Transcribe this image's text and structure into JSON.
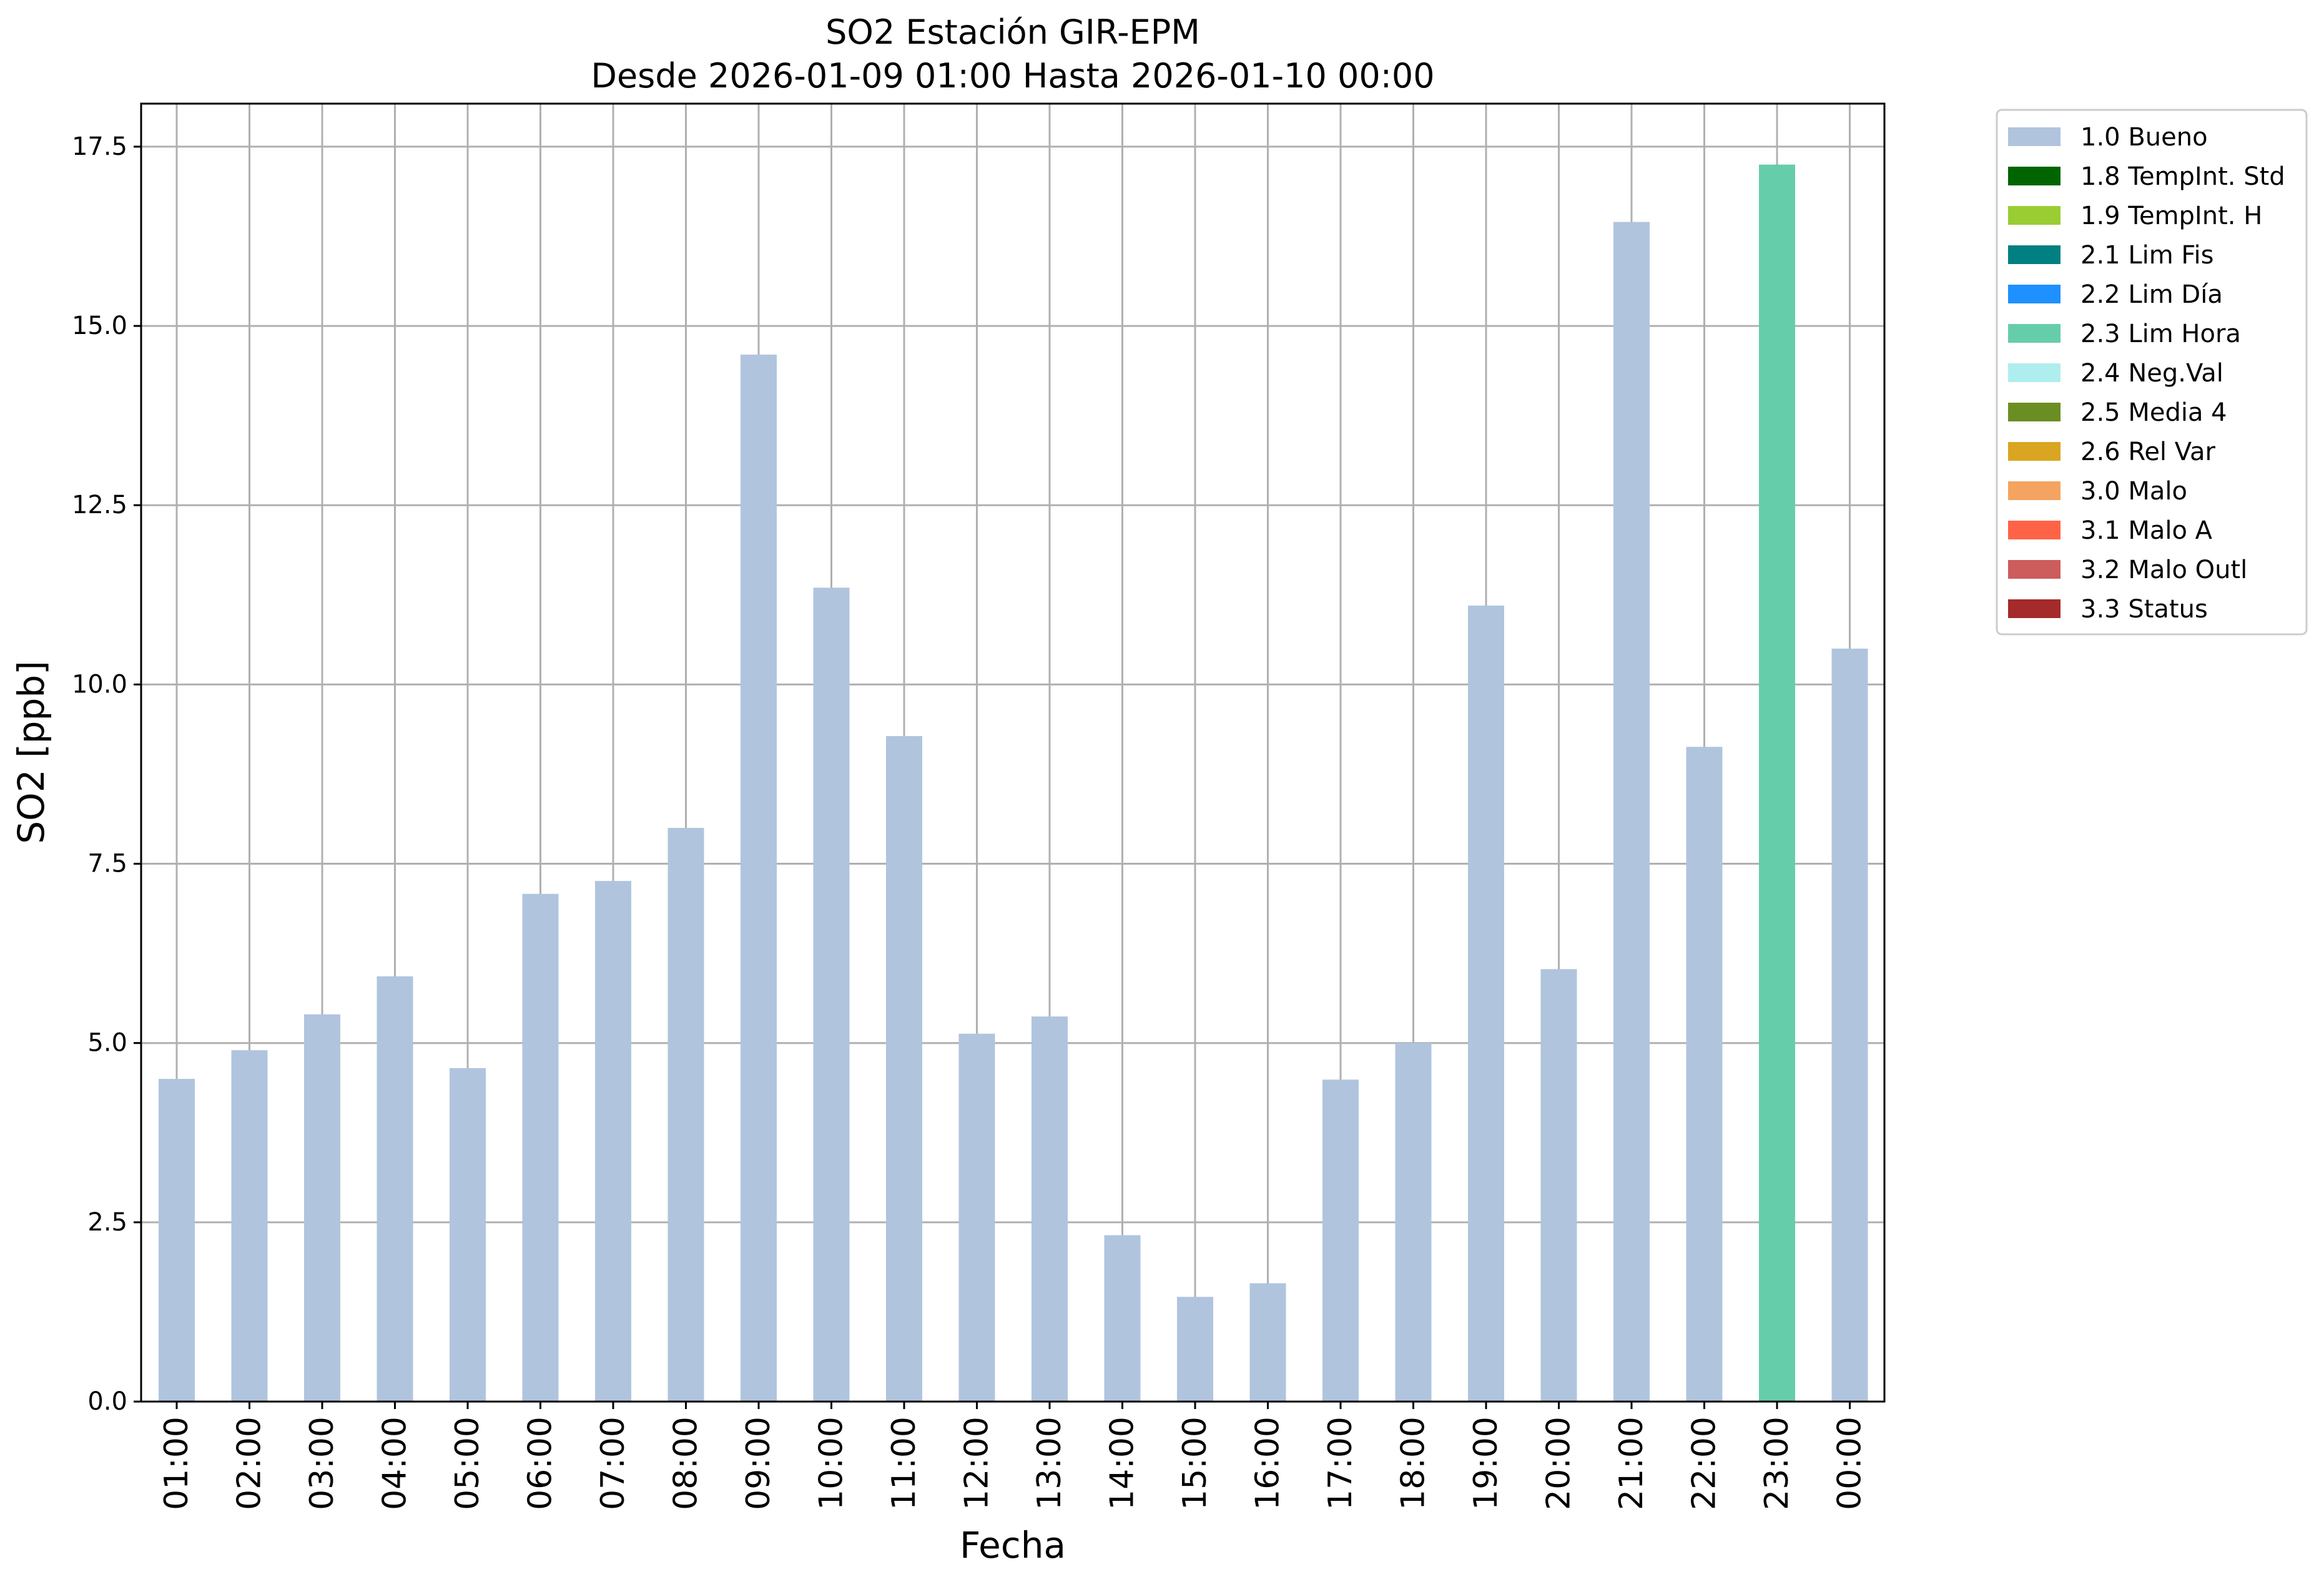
{
  "chart_data": {
    "type": "bar",
    "title": "SO2 Estación GIR-EPM",
    "subtitle": "Desde 2026-01-09 01:00 Hasta 2026-01-10 00:00",
    "xlabel": "Fecha",
    "ylabel": "SO2 [ppb]",
    "ylim": [
      0,
      18.1
    ],
    "yticks": [
      "0.0",
      "2.5",
      "5.0",
      "7.5",
      "10.0",
      "12.5",
      "15.0",
      "17.5"
    ],
    "grid": true,
    "legend_position": "outside-top-right",
    "categories": [
      "01:00",
      "02:00",
      "03:00",
      "04:00",
      "05:00",
      "06:00",
      "07:00",
      "08:00",
      "09:00",
      "10:00",
      "11:00",
      "12:00",
      "13:00",
      "14:00",
      "15:00",
      "16:00",
      "17:00",
      "18:00",
      "19:00",
      "20:00",
      "21:00",
      "22:00",
      "23:00",
      "00:00"
    ],
    "values": [
      4.5,
      4.9,
      5.4,
      5.93,
      4.65,
      7.08,
      7.26,
      8.0,
      14.6,
      11.35,
      9.28,
      5.13,
      5.37,
      2.32,
      1.46,
      1.65,
      4.49,
      5.0,
      11.1,
      6.03,
      16.45,
      9.13,
      17.25,
      10.5
    ],
    "bar_flags": [
      "1.0 Bueno",
      "1.0 Bueno",
      "1.0 Bueno",
      "1.0 Bueno",
      "1.0 Bueno",
      "1.0 Bueno",
      "1.0 Bueno",
      "1.0 Bueno",
      "1.0 Bueno",
      "1.0 Bueno",
      "1.0 Bueno",
      "1.0 Bueno",
      "1.0 Bueno",
      "1.0 Bueno",
      "1.0 Bueno",
      "1.0 Bueno",
      "1.0 Bueno",
      "1.0 Bueno",
      "1.0 Bueno",
      "1.0 Bueno",
      "1.0 Bueno",
      "1.0 Bueno",
      "2.3 Lim Hora",
      "1.0 Bueno"
    ],
    "legend": [
      {
        "label": "1.0 Bueno",
        "color": "#b0c4de"
      },
      {
        "label": "1.8 TempInt. Std",
        "color": "#006400"
      },
      {
        "label": "1.9 TempInt. H",
        "color": "#9acd32"
      },
      {
        "label": "2.1 Lim Fis",
        "color": "#008080"
      },
      {
        "label": "2.2 Lim Día",
        "color": "#1e90ff"
      },
      {
        "label": "2.3 Lim Hora",
        "color": "#66cdaa"
      },
      {
        "label": "2.4 Neg.Val",
        "color": "#afeeee"
      },
      {
        "label": "2.5 Media 4",
        "color": "#6b8e23"
      },
      {
        "label": "2.6 Rel Var",
        "color": "#daa520"
      },
      {
        "label": "3.0 Malo",
        "color": "#f4a460"
      },
      {
        "label": "3.1 Malo A",
        "color": "#ff6347"
      },
      {
        "label": "3.2 Malo Outl",
        "color": "#cd5c5c"
      },
      {
        "label": "3.3 Status",
        "color": "#a52a2a"
      }
    ]
  }
}
